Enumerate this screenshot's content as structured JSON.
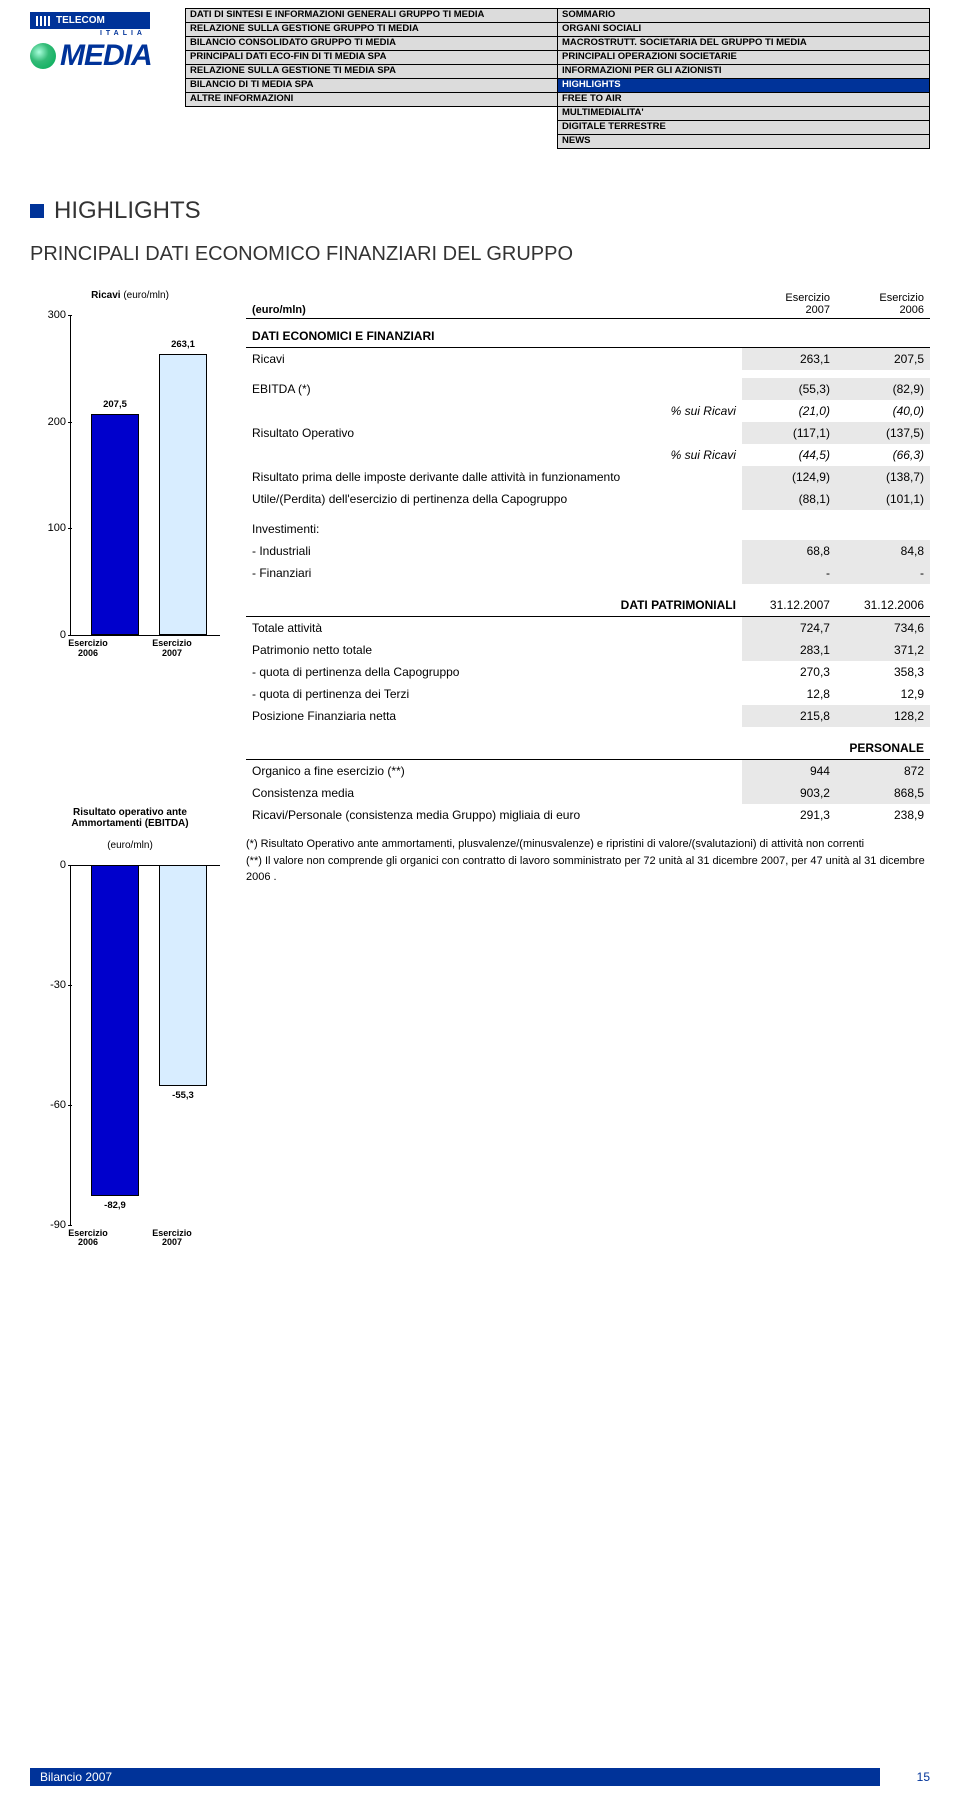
{
  "logo": {
    "brand_top": "TELECOM",
    "brand_sub": "ITALIA",
    "brand_main": "MEDIA"
  },
  "nav": {
    "rows": [
      {
        "l": "DATI DI SINTESI E INFORMAZIONI GENERALI  GRUPPO TI MEDIA",
        "r": "SOMMARIO",
        "lhl": false,
        "rhl": false
      },
      {
        "l": "RELAZIONE SULLA GESTIONE GRUPPO TI MEDIA",
        "r": "ORGANI SOCIALI",
        "lhl": false,
        "rhl": false
      },
      {
        "l": "BILANCIO CONSOLIDATO GRUPPO TI MEDIA",
        "r": "MACROSTRUTT. SOCIETARIA DEL GRUPPO TI MEDIA",
        "lhl": false,
        "rhl": false
      },
      {
        "l": "PRINCIPALI DATI ECO-FIN DI TI MEDIA SPA",
        "r": "PRINCIPALI OPERAZIONI SOCIETARIE",
        "lhl": false,
        "rhl": false
      },
      {
        "l": "RELAZIONE SULLA GESTIONE TI MEDIA SPA",
        "r": "INFORMAZIONI PER GLI AZIONISTI",
        "lhl": false,
        "rhl": false
      },
      {
        "l": "BILANCIO DI TI MEDIA SPA",
        "r": "HIGHLIGHTS",
        "lhl": false,
        "rhl": true
      },
      {
        "l": "ALTRE INFORMAZIONI",
        "r": "FREE TO AIR",
        "lhl": false,
        "rhl": false
      },
      {
        "l": "",
        "r": "MULTIMEDIALITA'",
        "lhl": false,
        "rhl": false
      },
      {
        "l": "",
        "r": "DIGITALE TERRESTRE",
        "lhl": false,
        "rhl": false
      },
      {
        "l": "",
        "r": "NEWS",
        "lhl": false,
        "rhl": false
      }
    ]
  },
  "titles": {
    "main": "HIGHLIGHTS",
    "sub": "PRINCIPALI DATI ECONOMICO FINANZIARI DEL GRUPPO"
  },
  "chart1": {
    "title_bold": "Ricavi",
    "title_light": "(euro/mln)",
    "type": "bar",
    "categories": [
      "Esercizio\n2006",
      "Esercizio\n2007"
    ],
    "values": [
      207.5,
      263.1
    ],
    "labels": [
      "207,5",
      "263,1"
    ],
    "colors": [
      "#0000cc",
      "#d8edff"
    ],
    "border": "#000000",
    "ylim": [
      0,
      300
    ],
    "yticks": [
      0,
      100,
      200,
      300
    ]
  },
  "chart2": {
    "title_bold": "Risultato operativo ante\nAmmortamenti (EBITDA)",
    "title_light": "(euro/mln)",
    "type": "bar",
    "categories": [
      "Esercizio\n2006",
      "Esercizio\n2007"
    ],
    "values": [
      -82.9,
      -55.3
    ],
    "labels": [
      "-82,9",
      "-55,3"
    ],
    "colors": [
      "#0000cc",
      "#d8edff"
    ],
    "border": "#000000",
    "ylim": [
      -90,
      0
    ],
    "yticks": [
      -90,
      -60,
      -30,
      0
    ]
  },
  "table": {
    "head_unit": "(euro/mln)",
    "head_col1_a": "Esercizio",
    "head_col1_b": "2007",
    "head_col2_a": "Esercizio",
    "head_col2_b": "2006",
    "sec1_title": "DATI ECONOMICI E FINANZIARI",
    "rows_econ": [
      {
        "label": "Ricavi",
        "v1": "263,1",
        "v2": "207,5",
        "shade": true,
        "italic": false
      },
      {
        "label": "EBITDA (*)",
        "v1": "(55,3)",
        "v2": "(82,9)",
        "shade": true,
        "italic": false
      },
      {
        "label": "% sui Ricavi",
        "v1": "(21,0)",
        "v2": "(40,0)",
        "shade": false,
        "italic": true,
        "align_right": true
      },
      {
        "label": "Risultato Operativo",
        "v1": "(117,1)",
        "v2": "(137,5)",
        "shade": true,
        "italic": false
      },
      {
        "label": "% sui Ricavi",
        "v1": "(44,5)",
        "v2": "(66,3)",
        "shade": false,
        "italic": true,
        "align_right": true
      },
      {
        "label": "Risultato prima delle imposte derivante dalle attività in funzionamento",
        "v1": "(124,9)",
        "v2": "(138,7)",
        "shade": true,
        "italic": false
      },
      {
        "label": "Utile/(Perdita) dell'esercizio di pertinenza della Capogruppo",
        "v1": "(88,1)",
        "v2": "(101,1)",
        "shade": true,
        "italic": false
      },
      {
        "label": "Investimenti:",
        "v1": "",
        "v2": "",
        "shade": false,
        "italic": false
      },
      {
        "label": "- Industriali",
        "v1": "68,8",
        "v2": "84,8",
        "shade": true,
        "italic": false
      },
      {
        "label": "- Finanziari",
        "v1": "-",
        "v2": "-",
        "shade": true,
        "italic": false
      }
    ],
    "sec2_title": "DATI PATRIMONIALI",
    "sec2_col1": "31.12.2007",
    "sec2_col2": "31.12.2006",
    "rows_patr": [
      {
        "label": "Totale attività",
        "v1": "724,7",
        "v2": "734,6",
        "shade": true
      },
      {
        "label": "Patrimonio netto totale",
        "v1": "283,1",
        "v2": "371,2",
        "shade": true
      },
      {
        "label": "- quota di pertinenza della Capogruppo",
        "v1": "270,3",
        "v2": "358,3",
        "shade": false
      },
      {
        "label": "- quota di pertinenza dei Terzi",
        "v1": "12,8",
        "v2": "12,9",
        "shade": false
      },
      {
        "label": "Posizione Finanziaria netta",
        "v1": "215,8",
        "v2": "128,2",
        "shade": true
      }
    ],
    "sec3_title": "PERSONALE",
    "rows_pers": [
      {
        "label": "Organico a fine esercizio (**)",
        "v1": "944",
        "v2": "872",
        "shade": true
      },
      {
        "label": "Consistenza media",
        "v1": "903,2",
        "v2": "868,5",
        "shade": true
      },
      {
        "label": "Ricavi/Personale (consistenza media Gruppo) migliaia di euro",
        "v1": "291,3",
        "v2": "238,9",
        "shade": false
      }
    ]
  },
  "footnotes": {
    "n1": "(*) Risultato Operativo ante ammortamenti, plusvalenze/(minusvalenze) e ripristini di valore/(svalutazioni) di attività non correnti",
    "n2": "(**) Il valore non comprende gli organici con contratto di lavoro somministrato per 72 unità al 31 dicembre 2007, per 47 unità al 31 dicembre 2006 ."
  },
  "footer": {
    "label": "Bilancio 2007",
    "page": "15"
  }
}
